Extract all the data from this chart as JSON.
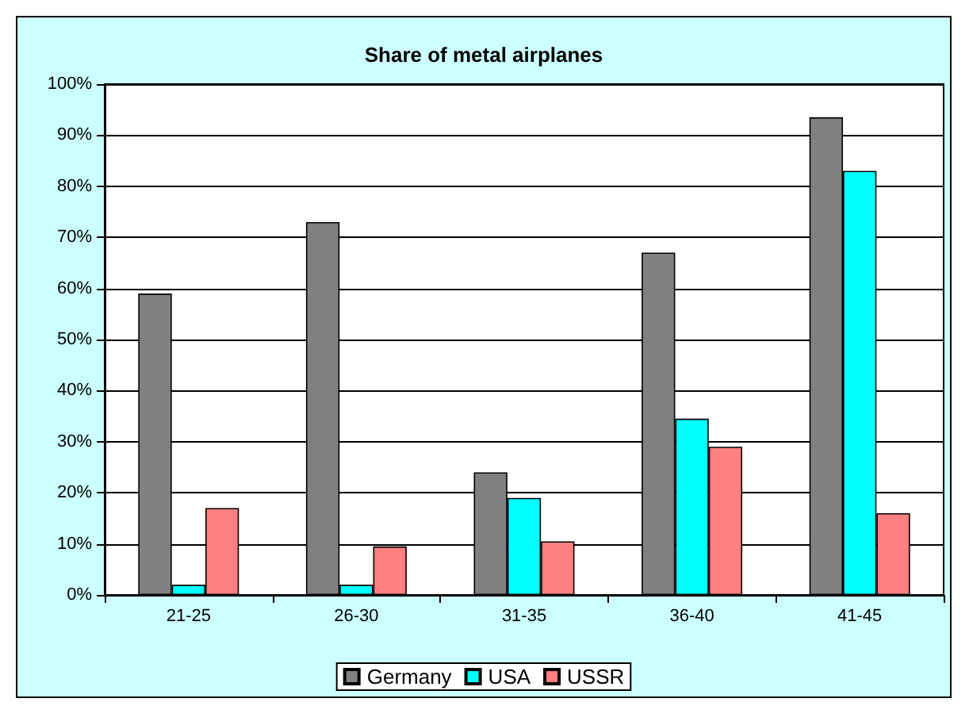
{
  "chart_data": {
    "type": "bar",
    "title": "Share of metal airplanes",
    "categories": [
      "21-25",
      "26-30",
      "31-35",
      "36-40",
      "41-45"
    ],
    "series": [
      {
        "name": "Germany",
        "color": "#808080",
        "values": [
          59,
          73,
          24,
          67,
          93.5
        ]
      },
      {
        "name": "USA",
        "color": "#00ffff",
        "values": [
          2,
          2,
          19,
          34.5,
          83
        ]
      },
      {
        "name": "USSR",
        "color": "#ff8080",
        "values": [
          17,
          9.5,
          10.5,
          29,
          16
        ]
      }
    ],
    "ylim": [
      0,
      100
    ],
    "yticks": [
      {
        "value": 0,
        "label": "0%"
      },
      {
        "value": 10,
        "label": "10%"
      },
      {
        "value": 20,
        "label": "20%"
      },
      {
        "value": 30,
        "label": "30%"
      },
      {
        "value": 40,
        "label": "40%"
      },
      {
        "value": 50,
        "label": "50%"
      },
      {
        "value": 60,
        "label": "60%"
      },
      {
        "value": 70,
        "label": "70%"
      },
      {
        "value": 80,
        "label": "80%"
      },
      {
        "value": 90,
        "label": "90%"
      },
      {
        "value": 100,
        "label": "100%"
      }
    ],
    "grid": "y",
    "legend": "bottom"
  }
}
